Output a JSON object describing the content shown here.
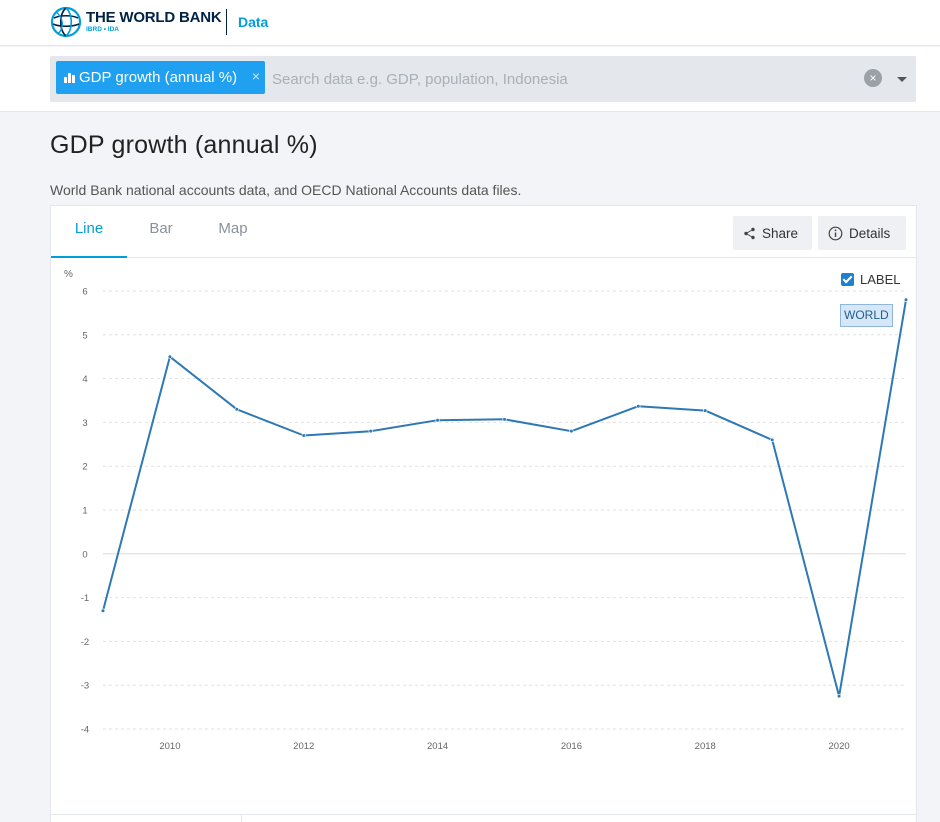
{
  "header": {
    "brand_name": "THE WORLD BANK",
    "brand_sub": "IBRD • IDA",
    "data_link": "Data"
  },
  "search": {
    "chip_label": "GDP growth (annual %)",
    "chip_remove": "×",
    "placeholder": "Search data e.g. GDP, population, Indonesia",
    "clear_label": "×"
  },
  "page": {
    "title": "GDP growth (annual %)",
    "source": "World Bank national accounts data, and OECD National Accounts data files."
  },
  "tabs": [
    {
      "label": "Line",
      "active": true
    },
    {
      "label": "Bar",
      "active": false
    },
    {
      "label": "Map",
      "active": false
    }
  ],
  "toolbar": {
    "share_label": "Share",
    "details_label": "Details"
  },
  "legend": {
    "label_toggle": "LABEL",
    "label_checked": true,
    "series_tag": "WORLD"
  },
  "colors": {
    "accent": "#009fda",
    "line": "#2e78b3",
    "chip": "#1fa0f0"
  },
  "chart_data": {
    "type": "line",
    "ylabel": "%",
    "ylim": [
      -4,
      6
    ],
    "yticks": [
      6,
      5,
      4,
      3,
      2,
      1,
      0,
      -1,
      -2,
      -3,
      -4
    ],
    "xlim": [
      2009,
      2021
    ],
    "xticks": [
      2010,
      2012,
      2014,
      2016,
      2018,
      2020
    ],
    "grid": true,
    "series": [
      {
        "name": "WORLD",
        "x": [
          2009,
          2010,
          2011,
          2012,
          2013,
          2014,
          2015,
          2016,
          2017,
          2018,
          2019,
          2020,
          2021
        ],
        "values": [
          -1.3,
          4.5,
          3.3,
          2.7,
          2.8,
          3.05,
          3.07,
          2.8,
          3.37,
          3.27,
          2.6,
          -3.25,
          5.8
        ]
      }
    ]
  }
}
